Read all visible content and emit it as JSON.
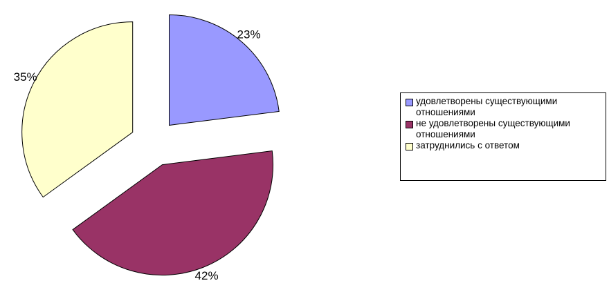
{
  "chart_data": {
    "type": "pie",
    "title": "",
    "slices": [
      {
        "label": "удовлетворены существующими отношениями",
        "value": 23,
        "value_label": "23%",
        "color": "#9999ff"
      },
      {
        "label": "не удовлетворены существующими отношениями",
        "value": 42,
        "value_label": "42%",
        "color": "#993366"
      },
      {
        "label": "затруднились с ответом",
        "value": 35,
        "value_label": "35%",
        "color": "#ffffcc"
      }
    ],
    "legend_position": "right",
    "exploded": true
  },
  "legend": {
    "items": [
      {
        "label": "удовлетворены существующими отношениями",
        "color": "#9999ff"
      },
      {
        "label": "не удовлетворены существующими отношениями",
        "color": "#993366"
      },
      {
        "label": "затруднились с ответом",
        "color": "#ffffcc"
      }
    ]
  }
}
